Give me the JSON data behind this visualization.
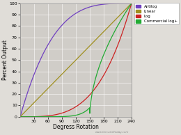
{
  "title": "",
  "xlabel": "Degress Rotation",
  "ylabel": "Percent Output",
  "watermark": "www.CircuitsToday.com",
  "xlim": [
    0,
    240
  ],
  "ylim": [
    0,
    100
  ],
  "xticks": [
    30,
    60,
    90,
    120,
    150,
    180,
    210,
    240
  ],
  "yticks": [
    0,
    10,
    20,
    30,
    40,
    50,
    60,
    70,
    80,
    90,
    100
  ],
  "background_color": "#e0ddd8",
  "plot_bg_color": "#d0cdc8",
  "legend_entries": [
    "Antilog",
    "Linear",
    "Log",
    "Commercial log+"
  ],
  "legend_colors": [
    "#7040c0",
    "#a09020",
    "#cc2222",
    "#22aa33"
  ],
  "curve_colors": [
    "#7040c0",
    "#a09020",
    "#cc2222",
    "#22aa33"
  ],
  "figsize": [
    2.6,
    1.94
  ],
  "dpi": 100
}
